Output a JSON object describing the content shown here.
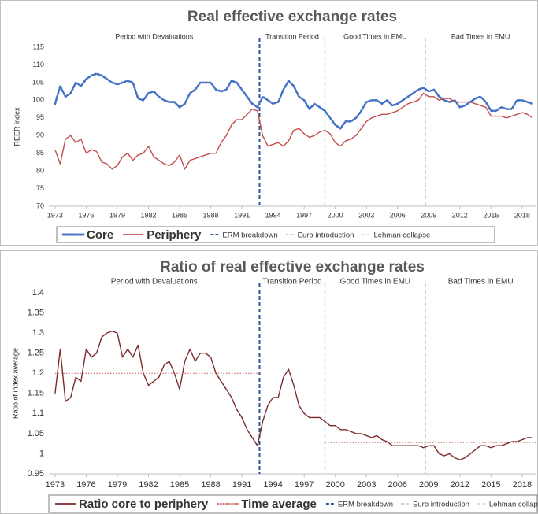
{
  "chart_data": [
    {
      "type": "line",
      "title": "Real effective exchange rates",
      "y_label": "REER index",
      "x": [
        1973,
        1973.5,
        1974,
        1974.5,
        1975,
        1975.5,
        1976,
        1976.5,
        1977,
        1977.5,
        1978,
        1978.5,
        1979,
        1979.5,
        1980,
        1980.5,
        1981,
        1981.5,
        1982,
        1982.5,
        1983,
        1983.5,
        1984,
        1984.5,
        1985,
        1985.5,
        1986,
        1986.5,
        1987,
        1987.5,
        1988,
        1988.5,
        1989,
        1989.5,
        1990,
        1990.5,
        1991,
        1991.5,
        1992,
        1992.5,
        1993,
        1993.5,
        1994,
        1994.5,
        1995,
        1995.5,
        1996,
        1996.5,
        1997,
        1997.5,
        1998,
        1998.5,
        1999,
        1999.5,
        2000,
        2000.5,
        2001,
        2001.5,
        2002,
        2002.5,
        2003,
        2003.5,
        2004,
        2004.5,
        2005,
        2005.5,
        2006,
        2006.5,
        2007,
        2007.5,
        2008,
        2008.5,
        2009,
        2009.5,
        2010,
        2010.5,
        2011,
        2011.5,
        2012,
        2012.5,
        2013,
        2013.5,
        2014,
        2014.5,
        2015,
        2015.5,
        2016,
        2016.5,
        2017,
        2017.5,
        2018,
        2018.5,
        2019
      ],
      "series": [
        {
          "name": "Core",
          "color": "#4472c4",
          "style": "dotted",
          "values": [
            99,
            104,
            101,
            102,
            105,
            104,
            106,
            107,
            107.5,
            107,
            106,
            105,
            104.5,
            105,
            105.5,
            105,
            100.5,
            100,
            102,
            102.5,
            101,
            100,
            99.5,
            99.5,
            98,
            99,
            102,
            103,
            105,
            105,
            105,
            103,
            102.5,
            103,
            105.5,
            105,
            103,
            101,
            99,
            98,
            101,
            100,
            99,
            99.5,
            103,
            105.5,
            104,
            101,
            100,
            97.5,
            99,
            98,
            97,
            95,
            93,
            92,
            94,
            94,
            95,
            97,
            99.5,
            100,
            100,
            99,
            100,
            98.5,
            99,
            100,
            101,
            102,
            103,
            103.5,
            102.5,
            103,
            101,
            100,
            99.5,
            100,
            98,
            98.5,
            99.5,
            100.5,
            101,
            99.5,
            97,
            97,
            98,
            97.5,
            97.5,
            100,
            100,
            99.5,
            99
          ]
        },
        {
          "name": "Periphery",
          "color": "#c0504d",
          "style": "solid",
          "values": [
            86,
            82,
            89,
            90,
            88,
            89,
            85,
            86,
            85.5,
            82.5,
            82,
            80.5,
            81.5,
            84,
            85,
            83,
            84.5,
            85,
            87,
            84,
            83,
            82,
            81.5,
            82.5,
            84.5,
            80.5,
            83,
            83.5,
            84,
            84.5,
            85,
            85,
            88,
            90,
            93,
            94.5,
            94.5,
            96,
            97.5,
            97,
            90,
            87,
            87.5,
            88,
            87,
            88.5,
            91.5,
            92,
            90.5,
            89.5,
            90,
            91,
            91.5,
            90.5,
            88,
            87,
            88.5,
            89,
            90,
            92,
            94,
            95,
            95.5,
            96,
            96,
            96.5,
            97,
            98,
            99,
            99.5,
            100,
            102,
            101,
            101,
            100,
            100.5,
            100.5,
            99.5,
            99.5,
            99.5,
            99.5,
            99,
            98.5,
            98,
            95.5,
            95.5,
            95.5,
            95,
            95.5,
            96,
            96.5,
            96,
            95
          ]
        }
      ],
      "events": [
        {
          "name": "ERM breakdown",
          "x": 1992.7,
          "color": "#2f5597"
        },
        {
          "name": "Euro introduction",
          "x": 1999,
          "color": "#9dc3e6"
        },
        {
          "name": "Lehman collapse",
          "x": 2008.7,
          "color": "#bdd7ee"
        }
      ],
      "periods": [
        "Period with Devaluations",
        "Transition Period",
        "Good Times in EMU",
        "Bad Times in EMU"
      ],
      "xlim": [
        1972.4,
        2019.3
      ],
      "xticks": [
        1973,
        1976,
        1979,
        1982,
        1985,
        1988,
        1991,
        1994,
        1997,
        2000,
        2003,
        2006,
        2009,
        2012,
        2015,
        2018
      ],
      "ylim": [
        70,
        115
      ],
      "yticks": [
        70,
        75,
        80,
        85,
        90,
        95,
        100,
        105,
        110,
        115
      ],
      "grid": false
    },
    {
      "type": "line",
      "title": "Ratio of real effective exchange rates",
      "y_label": "Ratio of index average",
      "x": [
        1973,
        1973.5,
        1974,
        1974.5,
        1975,
        1975.5,
        1976,
        1976.5,
        1977,
        1977.5,
        1978,
        1978.5,
        1979,
        1979.5,
        1980,
        1980.5,
        1981,
        1981.5,
        1982,
        1982.5,
        1983,
        1983.5,
        1984,
        1984.5,
        1985,
        1985.5,
        1986,
        1986.5,
        1987,
        1987.5,
        1988,
        1988.5,
        1989,
        1989.5,
        1990,
        1990.5,
        1991,
        1991.5,
        1992,
        1992.5,
        1993,
        1993.5,
        1994,
        1994.5,
        1995,
        1995.5,
        1996,
        1996.5,
        1997,
        1997.5,
        1998,
        1998.5,
        1999,
        1999.5,
        2000,
        2000.5,
        2001,
        2001.5,
        2002,
        2002.5,
        2003,
        2003.5,
        2004,
        2004.5,
        2005,
        2005.5,
        2006,
        2006.5,
        2007,
        2007.5,
        2008,
        2008.5,
        2009,
        2009.5,
        2010,
        2010.5,
        2011,
        2011.5,
        2012,
        2012.5,
        2013,
        2013.5,
        2014,
        2014.5,
        2015,
        2015.5,
        2016,
        2016.5,
        2017,
        2017.5,
        2018,
        2018.5,
        2019
      ],
      "series": [
        {
          "name": "Ratio core to periphery",
          "color": "#7b2a2a",
          "style": "solid",
          "values": [
            1.15,
            1.26,
            1.13,
            1.14,
            1.19,
            1.18,
            1.26,
            1.24,
            1.25,
            1.29,
            1.3,
            1.305,
            1.3,
            1.24,
            1.26,
            1.24,
            1.27,
            1.2,
            1.17,
            1.18,
            1.19,
            1.22,
            1.23,
            1.2,
            1.16,
            1.23,
            1.26,
            1.23,
            1.25,
            1.25,
            1.24,
            1.2,
            1.18,
            1.16,
            1.14,
            1.11,
            1.09,
            1.06,
            1.04,
            1.02,
            1.08,
            1.12,
            1.14,
            1.14,
            1.19,
            1.21,
            1.17,
            1.12,
            1.1,
            1.09,
            1.09,
            1.09,
            1.08,
            1.07,
            1.07,
            1.06,
            1.06,
            1.055,
            1.05,
            1.05,
            1.045,
            1.04,
            1.045,
            1.035,
            1.03,
            1.02,
            1.02,
            1.02,
            1.02,
            1.02,
            1.02,
            1.015,
            1.02,
            1.02,
            1.0,
            0.995,
            1.0,
            0.99,
            0.985,
            0.99,
            1.0,
            1.01,
            1.02,
            1.02,
            1.015,
            1.02,
            1.02,
            1.025,
            1.03,
            1.03,
            1.035,
            1.04,
            1.04
          ]
        },
        {
          "name": "Time average",
          "color": "#c0504d",
          "style": "dotted-thin",
          "x": [
            1973,
            1992.5,
            1995,
            1999,
            2019.3
          ],
          "values": [
            1.2,
            1.2,
            null,
            1.028,
            1.028
          ]
        }
      ],
      "events": [
        {
          "name": "ERM breakdown",
          "x": 1992.7,
          "color": "#2f5597"
        },
        {
          "name": "Euro introduction",
          "x": 1999,
          "color": "#9dc3e6"
        },
        {
          "name": "Lehman collapse",
          "x": 2008.7,
          "color": "#bdd7ee"
        }
      ],
      "periods": [
        "Period with Devaluations",
        "Transition Period",
        "Good Times in EMU",
        "Bad Times in EMU"
      ],
      "xlim": [
        1972.4,
        2019.3
      ],
      "xticks": [
        1973,
        1976,
        1979,
        1982,
        1985,
        1988,
        1991,
        1994,
        1997,
        2000,
        2003,
        2006,
        2009,
        2012,
        2015,
        2018
      ],
      "ylim": [
        0.95,
        1.4
      ],
      "yticks": [
        0.95,
        1,
        1.05,
        1.1,
        1.15,
        1.2,
        1.25,
        1.3,
        1.35,
        1.4
      ],
      "grid": false
    }
  ]
}
